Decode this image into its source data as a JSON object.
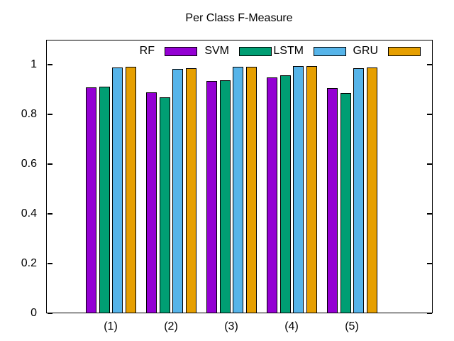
{
  "chart_data": {
    "type": "bar",
    "title": "Per Class F-Measure",
    "categories": [
      "(1)",
      "(2)",
      "(3)",
      "(4)",
      "(5)"
    ],
    "series": [
      {
        "name": "RF",
        "color": "#9400d3",
        "values": [
          0.91,
          0.89,
          0.934,
          0.95,
          0.905
        ]
      },
      {
        "name": "SVM",
        "color": "#009e73",
        "values": [
          0.912,
          0.87,
          0.938,
          0.956,
          0.887
        ]
      },
      {
        "name": "LSTM",
        "color": "#56b4e9",
        "values": [
          0.99,
          0.982,
          0.991,
          0.994,
          0.986
        ]
      },
      {
        "name": "GRU",
        "color": "#e69f00",
        "values": [
          0.991,
          0.985,
          0.991,
          0.994,
          0.988
        ]
      }
    ],
    "xlabel": "",
    "ylabel": "",
    "ylim": [
      0,
      1.1
    ],
    "yticks": [
      0,
      0.2,
      0.4,
      0.6,
      0.8,
      1
    ],
    "ytick_labels": [
      "0",
      "0.2",
      "0.4",
      "0.6",
      "0.8",
      "1"
    ],
    "legend": {
      "position": "top-inside",
      "entries": [
        "RF",
        "SVM",
        "LSTM",
        "GRU"
      ]
    },
    "grid": false,
    "colors": {
      "background": "#ffffff",
      "axis": "#000000",
      "bar_border": "#000000",
      "text": "#000000"
    }
  }
}
